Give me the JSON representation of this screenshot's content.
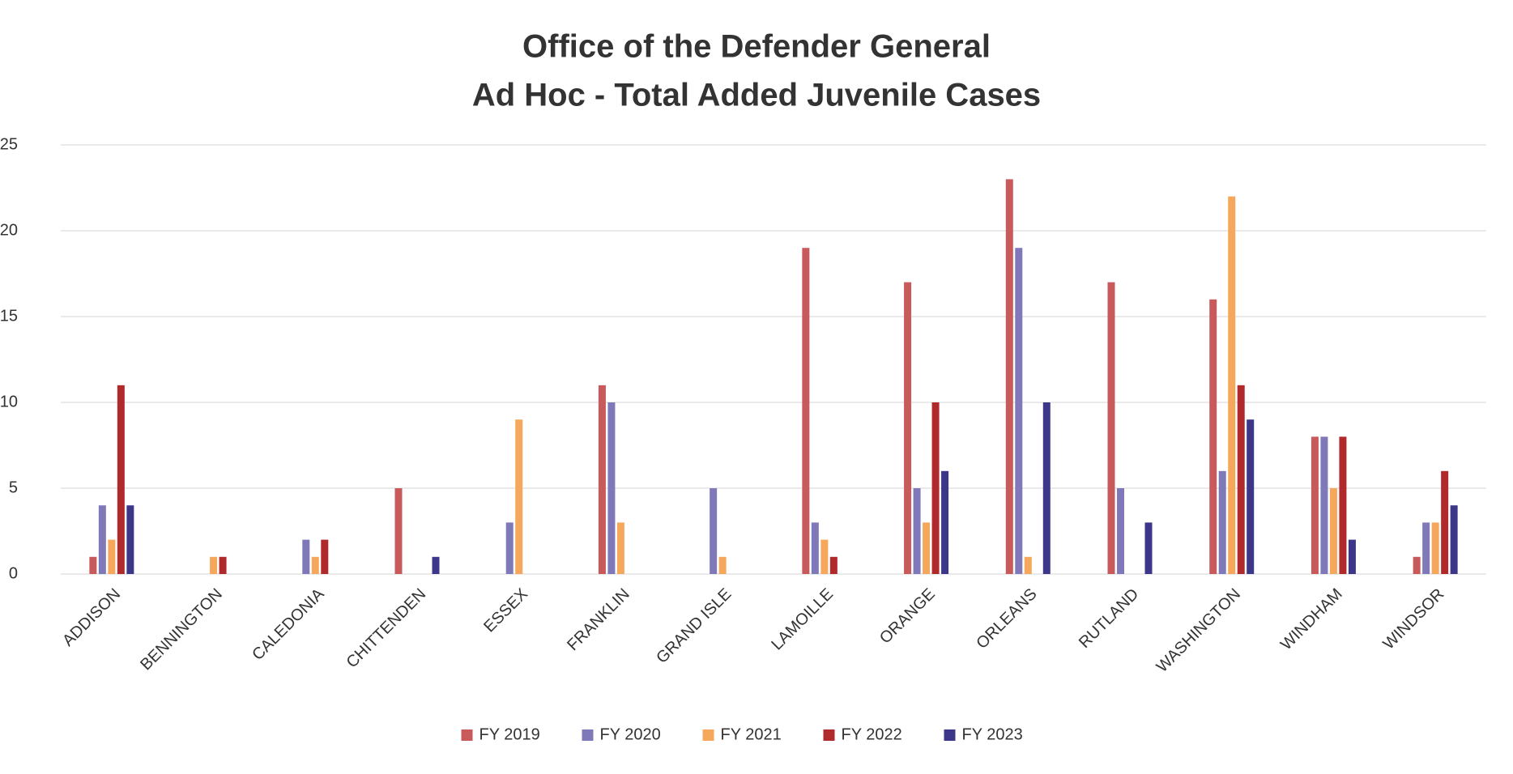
{
  "chart_data": {
    "type": "bar",
    "title": [
      "Office of the Defender General",
      "Ad Hoc - Total Added Juvenile Cases"
    ],
    "categories": [
      "ADDISON",
      "BENNINGTON",
      "CALEDONIA",
      "CHITTENDEN",
      "ESSEX",
      "FRANKLIN",
      "GRAND ISLE",
      "LAMOILLE",
      "ORANGE",
      "ORLEANS",
      "RUTLAND",
      "WASHINGTON",
      "WINDHAM",
      "WINDSOR"
    ],
    "series": [
      {
        "name": "FY 2019",
        "color": "#c85a5c",
        "values": [
          1,
          0,
          0,
          5,
          0,
          11,
          0,
          19,
          17,
          23,
          17,
          16,
          8,
          1
        ]
      },
      {
        "name": "FY 2020",
        "color": "#7f79ba",
        "values": [
          4,
          0,
          2,
          0,
          3,
          10,
          5,
          3,
          5,
          19,
          5,
          6,
          8,
          3
        ]
      },
      {
        "name": "FY 2021",
        "color": "#f5a85c",
        "values": [
          2,
          1,
          1,
          0,
          9,
          3,
          1,
          2,
          3,
          1,
          0,
          22,
          5,
          3
        ]
      },
      {
        "name": "FY 2022",
        "color": "#b02a2c",
        "values": [
          11,
          1,
          2,
          0,
          0,
          0,
          0,
          1,
          10,
          0,
          0,
          11,
          8,
          6
        ]
      },
      {
        "name": "FY 2023",
        "color": "#3c3788",
        "values": [
          4,
          0,
          0,
          1,
          0,
          0,
          0,
          0,
          6,
          10,
          3,
          9,
          2,
          4
        ]
      }
    ],
    "ylim": [
      0,
      25
    ],
    "yticks": [
      0,
      5,
      10,
      15,
      20,
      25
    ],
    "grid": true,
    "legend": "bottom"
  }
}
